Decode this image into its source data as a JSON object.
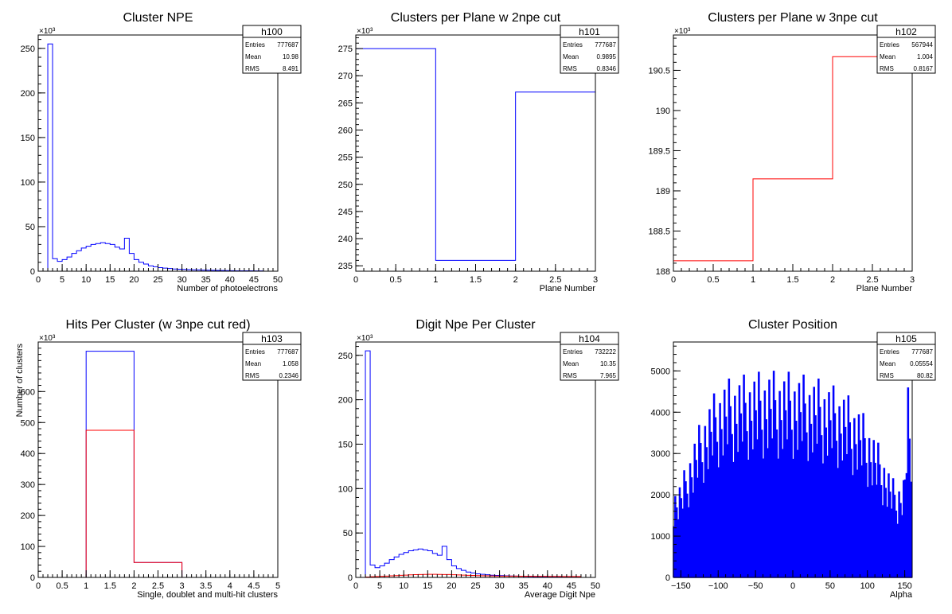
{
  "colors": {
    "series_primary": "#0000ff",
    "series_secondary": "#ff0000",
    "frame": "#000000",
    "background": "#ffffff"
  },
  "chart_data": [
    {
      "type": "bar",
      "id": "h100",
      "title": "Cluster NPE",
      "xlabel": "Number of photoelectrons",
      "ylabel": "",
      "y_multiplier": "×10³",
      "xlim": [
        0,
        50
      ],
      "ylim": [
        0,
        265
      ],
      "xticks": [
        0,
        5,
        10,
        15,
        20,
        25,
        30,
        35,
        40,
        45,
        50
      ],
      "yticks": [
        0,
        50,
        100,
        150,
        200,
        250
      ],
      "grid": false,
      "legend": "top-right",
      "bins": {
        "x0": 2,
        "width": 1
      },
      "series": [
        {
          "color": "#0000ff",
          "values": [
            255,
            14,
            11,
            13,
            16,
            20,
            23,
            26,
            28,
            30,
            31,
            32,
            31,
            30,
            27,
            25,
            37,
            20,
            13,
            10,
            8,
            6,
            5,
            4,
            3.5,
            3,
            2.5,
            2.2,
            2,
            1.8,
            1.6,
            1.4,
            1.2,
            1.1,
            1,
            0.9,
            0.8,
            0.7,
            0.6,
            0.5,
            0.5,
            0.4,
            0.4,
            0.3,
            0.3
          ]
        }
      ],
      "stats": {
        "name": "h100",
        "rows": [
          {
            "label": "Entries",
            "value": "777687"
          },
          {
            "label": "Mean",
            "value": "10.98"
          },
          {
            "label": "RMS",
            "value": "8.491"
          }
        ]
      }
    },
    {
      "type": "bar",
      "id": "h101",
      "title": "Clusters per Plane w 2npe cut",
      "xlabel": "Plane Number",
      "ylabel": "",
      "y_multiplier": "×10³",
      "xlim": [
        0,
        3
      ],
      "ylim": [
        234,
        277.5
      ],
      "xticks": [
        0,
        0.5,
        1,
        1.5,
        2,
        2.5,
        3
      ],
      "yticks": [
        235,
        240,
        245,
        250,
        255,
        260,
        265,
        270,
        275
      ],
      "grid": false,
      "legend": "top-right",
      "bins": {
        "x0": 0,
        "width": 1
      },
      "series": [
        {
          "color": "#0000ff",
          "values": [
            275,
            236,
            267
          ]
        }
      ],
      "stats": {
        "name": "h101",
        "rows": [
          {
            "label": "Entries",
            "value": "777687"
          },
          {
            "label": "Mean",
            "value": "0.9895"
          },
          {
            "label": "RMS",
            "value": "0.8346"
          }
        ]
      }
    },
    {
      "type": "bar",
      "id": "h102",
      "title": "Clusters per Plane w 3npe cut",
      "xlabel": "Plane Number",
      "ylabel": "",
      "y_multiplier": "×10³",
      "xlim": [
        0,
        3
      ],
      "ylim": [
        188,
        190.94
      ],
      "xticks": [
        0,
        0.5,
        1,
        1.5,
        2,
        2.5,
        3
      ],
      "yticks": [
        188,
        188.5,
        189,
        189.5,
        190,
        190.5
      ],
      "grid": false,
      "legend": "top-right",
      "bins": {
        "x0": 0,
        "width": 1
      },
      "series": [
        {
          "color": "#ff0000",
          "values": [
            188.13,
            189.15,
            190.67
          ]
        }
      ],
      "stats": {
        "name": "h102",
        "rows": [
          {
            "label": "Entries",
            "value": "567944"
          },
          {
            "label": "Mean",
            "value": "1.004"
          },
          {
            "label": "RMS",
            "value": "0.8167"
          }
        ]
      }
    },
    {
      "type": "bar",
      "id": "h103",
      "title": "Hits Per Cluster (w 3npe cut red)",
      "xlabel": "Single, doublet and multi-hit clusters",
      "ylabel": "Number of clusters",
      "y_multiplier": "×10³",
      "xlim": [
        0,
        5
      ],
      "ylim": [
        0,
        760
      ],
      "xticks": [
        0,
        0.5,
        1,
        1.5,
        2,
        2.5,
        3,
        3.5,
        4,
        4.5,
        5
      ],
      "ytick_labels_rendered": [
        "0",
        "100",
        "200",
        "300",
        "400",
        "500",
        "600",
        "",
        ""
      ],
      "yticks": [
        0,
        100,
        200,
        300,
        400,
        500,
        600
      ],
      "grid": false,
      "legend": "top-right",
      "bins": {
        "x0": 1,
        "width": 1
      },
      "series": [
        {
          "color": "#0000ff",
          "values": [
            730,
            48,
            0
          ]
        },
        {
          "color": "#ff0000",
          "values": [
            475,
            48,
            0
          ]
        }
      ],
      "stats": {
        "name": "h103",
        "rows": [
          {
            "label": "Entries",
            "value": "777687"
          },
          {
            "label": "Mean",
            "value": "1.058"
          },
          {
            "label": "RMS",
            "value": "0.2346"
          }
        ]
      }
    },
    {
      "type": "bar",
      "id": "h104",
      "title": "Digit Npe Per Cluster",
      "xlabel": "Average Digit Npe",
      "ylabel": "",
      "y_multiplier": "×10³",
      "xlim": [
        0,
        50
      ],
      "ylim": [
        0,
        265
      ],
      "xticks": [
        0,
        5,
        10,
        15,
        20,
        25,
        30,
        35,
        40,
        45,
        50
      ],
      "yticks": [
        0,
        50,
        100,
        150,
        200,
        250
      ],
      "grid": false,
      "legend": "top-right",
      "bins": {
        "x0": 2,
        "width": 1
      },
      "series": [
        {
          "color": "#0000ff",
          "values": [
            255,
            14,
            11,
            13,
            16,
            20,
            23,
            26,
            28,
            30,
            31,
            32,
            31,
            30,
            27,
            25,
            35,
            20,
            13,
            10,
            8,
            6,
            5,
            4,
            3.5,
            3,
            2.5,
            2.2,
            2,
            1.8,
            1.6,
            1.4,
            1.2,
            1.1,
            1,
            0.9,
            0.8,
            0.7,
            0.6,
            0.5,
            0.5,
            0.4,
            0.4,
            0.3,
            0.3
          ]
        },
        {
          "color": "#ff0000",
          "values": [
            0.5,
            0.8,
            1,
            1.2,
            1.5,
            1.8,
            2,
            2.3,
            2.6,
            2.9,
            3.1,
            3.3,
            3.4,
            3.5,
            3.5,
            3.4,
            3.3,
            3.2,
            3,
            2.8,
            2.6,
            2.4,
            2.2,
            2,
            1.9,
            1.8,
            1.7,
            1.6,
            1.5,
            1.5,
            1.4,
            1.4,
            1.3,
            1.3,
            1.3,
            1.2,
            1.2,
            1.2,
            1.1,
            1.1,
            1.1,
            1,
            1,
            1,
            1
          ]
        }
      ],
      "stats": {
        "name": "h104",
        "rows": [
          {
            "label": "Entries",
            "value": "732222"
          },
          {
            "label": "Mean",
            "value": "10.35"
          },
          {
            "label": "RMS",
            "value": "7.965"
          }
        ]
      }
    },
    {
      "type": "bar",
      "id": "h105",
      "title": "Cluster Position",
      "xlabel": "Alpha",
      "ylabel": "",
      "y_multiplier": "",
      "xlim": [
        -160,
        160
      ],
      "ylim": [
        0,
        5700
      ],
      "xticks": [
        -150,
        -100,
        -50,
        0,
        50,
        100,
        150
      ],
      "xtick_labels_rendered": [
        "−150",
        "−100",
        "−50",
        "0",
        "50",
        "100",
        "150"
      ],
      "yticks": [
        0,
        1000,
        2000,
        3000,
        4000,
        5000
      ],
      "grid": false,
      "legend": "top-right",
      "comb": {
        "x0": -160,
        "width": 2
      },
      "series": [
        {
          "color": "#0000ff",
          "envelope_anchors": [
            [
              -160,
              2200
            ],
            [
              -150,
              2400
            ],
            [
              -140,
              3000
            ],
            [
              -130,
              3600
            ],
            [
              -120,
              4100
            ],
            [
              -110,
              4500
            ],
            [
              -100,
              4800
            ],
            [
              -90,
              5000
            ],
            [
              -80,
              5050
            ],
            [
              -70,
              5100
            ],
            [
              -60,
              5150
            ],
            [
              -50,
              5200
            ],
            [
              -40,
              5200
            ],
            [
              -30,
              5250
            ],
            [
              -20,
              5200
            ],
            [
              -10,
              5200
            ],
            [
              0,
              5200
            ],
            [
              10,
              5150
            ],
            [
              20,
              5100
            ],
            [
              30,
              5050
            ],
            [
              40,
              5000
            ],
            [
              50,
              4900
            ],
            [
              60,
              4800
            ],
            [
              70,
              4700
            ],
            [
              80,
              4500
            ],
            [
              90,
              4300
            ],
            [
              100,
              4000
            ],
            [
              110,
              3600
            ],
            [
              120,
              3200
            ],
            [
              130,
              2700
            ],
            [
              140,
              2300
            ],
            [
              150,
              2600
            ],
            [
              155,
              4800
            ],
            [
              160,
              3000
            ]
          ]
        }
      ],
      "stats": {
        "name": "h105",
        "rows": [
          {
            "label": "Entries",
            "value": "777687"
          },
          {
            "label": "Mean",
            "value": "0.05554"
          },
          {
            "label": "RMS",
            "value": "80.82"
          }
        ]
      }
    }
  ]
}
